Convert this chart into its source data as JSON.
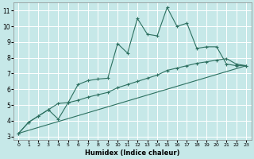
{
  "xlabel": "Humidex (Indice chaleur)",
  "xlim": [
    -0.5,
    23.5
  ],
  "ylim": [
    2.8,
    11.5
  ],
  "yticks": [
    3,
    4,
    5,
    6,
    7,
    8,
    9,
    10,
    11
  ],
  "xticks": [
    0,
    1,
    2,
    3,
    4,
    5,
    6,
    7,
    8,
    9,
    10,
    11,
    12,
    13,
    14,
    15,
    16,
    17,
    18,
    19,
    20,
    21,
    22,
    23
  ],
  "bg_color": "#c6e8e8",
  "grid_color": "#ffffff",
  "line_color": "#2d7060",
  "line1_x": [
    0,
    1,
    2,
    3,
    4,
    5,
    6,
    7,
    8,
    9,
    10,
    11,
    12,
    13,
    14,
    15,
    16,
    17,
    18,
    19,
    20,
    21,
    22,
    23
  ],
  "line1_y": [
    3.2,
    3.9,
    4.3,
    4.7,
    4.1,
    5.15,
    6.3,
    6.55,
    6.65,
    6.7,
    8.9,
    8.3,
    10.5,
    9.5,
    9.4,
    11.2,
    10.0,
    10.2,
    8.6,
    8.7,
    8.7,
    7.6,
    7.5,
    7.5
  ],
  "line2_x": [
    0,
    1,
    2,
    3,
    4,
    5,
    6,
    7,
    8,
    9,
    10,
    11,
    12,
    13,
    14,
    15,
    16,
    17,
    18,
    19,
    20,
    21,
    22,
    23
  ],
  "line2_y": [
    3.2,
    3.9,
    4.3,
    4.7,
    5.1,
    5.15,
    5.3,
    5.5,
    5.65,
    5.8,
    6.1,
    6.3,
    6.5,
    6.7,
    6.9,
    7.2,
    7.35,
    7.5,
    7.65,
    7.75,
    7.85,
    7.95,
    7.6,
    7.5
  ],
  "line3_x": [
    0,
    23
  ],
  "line3_y": [
    3.2,
    7.5
  ]
}
